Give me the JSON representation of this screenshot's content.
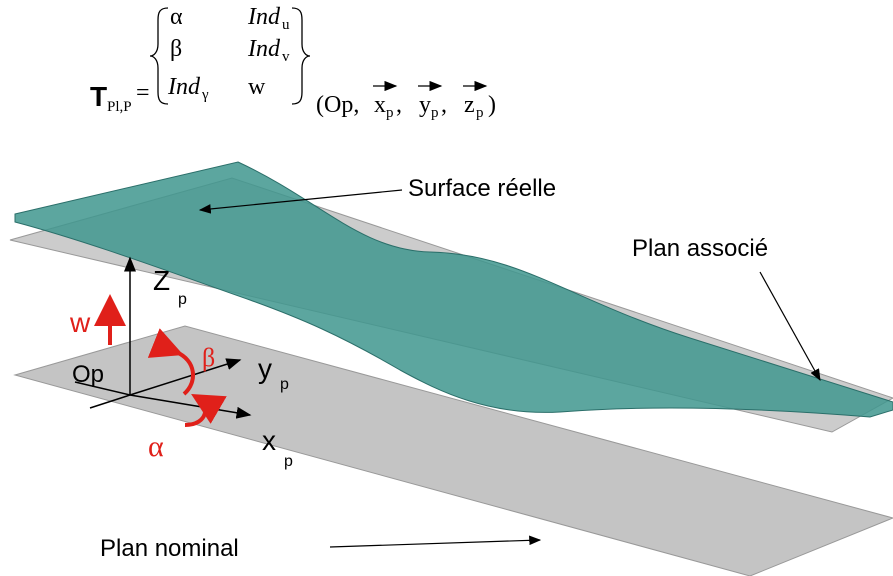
{
  "torsor": {
    "symbol": "T",
    "subscript": "Pl,P",
    "equals": "=",
    "rows": [
      {
        "left": "α",
        "right": "Ind",
        "right_sub": "u"
      },
      {
        "left": "β",
        "right": "Ind",
        "right_sub": "v"
      },
      {
        "left": "Ind",
        "left_sub": "γ",
        "right": "w"
      }
    ],
    "frame": {
      "open": "(Op,",
      "separator": ",",
      "close": ")",
      "vectors": [
        {
          "name": "x",
          "sub": "p"
        },
        {
          "name": "y",
          "sub": "p"
        },
        {
          "name": "z",
          "sub": "p"
        }
      ]
    }
  },
  "labels": {
    "surface": "Surface réelle",
    "associated": "Plan associé",
    "nominal": "Plan nominal"
  },
  "axes": {
    "origin": "Op",
    "z": {
      "name": "Z",
      "sub": "p"
    },
    "y": {
      "name": "y",
      "sub": "p"
    },
    "x": {
      "name": "x",
      "sub": "p"
    }
  },
  "parameters": {
    "w": "w",
    "beta": "β",
    "alpha": "α"
  }
}
